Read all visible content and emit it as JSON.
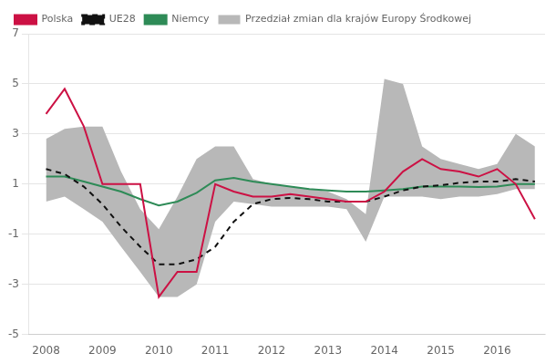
{
  "chart_data": {
    "type": "line",
    "x": [
      2008.0,
      2008.33,
      2008.67,
      2009.0,
      2009.33,
      2009.67,
      2010.0,
      2010.33,
      2010.67,
      2011.0,
      2011.33,
      2011.67,
      2012.0,
      2012.33,
      2012.67,
      2013.0,
      2013.33,
      2013.67,
      2014.0,
      2014.33,
      2014.67,
      2015.0,
      2015.33,
      2015.67,
      2016.0,
      2016.33,
      2016.67
    ],
    "series": [
      {
        "name": "Przedział zmian dla krajów Europy Środkowej",
        "type": "band",
        "color": "#b8b8b8",
        "lower": [
          0.3,
          0.5,
          0.0,
          -0.5,
          -1.5,
          -2.5,
          -3.5,
          -3.5,
          -3.0,
          -0.5,
          0.3,
          0.2,
          0.1,
          0.1,
          0.1,
          0.1,
          0.0,
          -1.3,
          0.5,
          0.5,
          0.5,
          0.4,
          0.5,
          0.5,
          0.6,
          0.8,
          0.8
        ],
        "upper": [
          2.8,
          3.2,
          3.3,
          3.3,
          1.5,
          0.0,
          -0.8,
          0.5,
          2.0,
          2.5,
          2.5,
          1.2,
          1.0,
          0.9,
          0.8,
          0.7,
          0.4,
          -0.2,
          5.2,
          5.0,
          2.5,
          2.0,
          1.8,
          1.6,
          1.8,
          3.0,
          2.5
        ]
      },
      {
        "name": "Niemcy",
        "type": "line",
        "color": "#2e8b57",
        "line_style": "solid",
        "values": [
          1.3,
          1.3,
          1.1,
          0.9,
          0.7,
          0.4,
          0.15,
          0.3,
          0.65,
          1.15,
          1.25,
          1.1,
          1.0,
          0.9,
          0.8,
          0.75,
          0.7,
          0.7,
          0.75,
          0.8,
          0.9,
          0.9,
          0.9,
          0.88,
          0.9,
          1.0,
          1.0
        ]
      },
      {
        "name": "UE28",
        "type": "line",
        "color": "#111111",
        "line_style": "dashed",
        "values": [
          1.6,
          1.4,
          0.9,
          0.2,
          -0.7,
          -1.5,
          -2.2,
          -2.2,
          -2.0,
          -1.5,
          -0.5,
          0.2,
          0.4,
          0.45,
          0.4,
          0.3,
          0.3,
          0.3,
          0.5,
          0.75,
          0.9,
          0.95,
          1.05,
          1.1,
          1.1,
          1.2,
          1.1
        ]
      },
      {
        "name": "Polska",
        "type": "line",
        "color": "#cc1144",
        "line_style": "solid",
        "values": [
          3.8,
          4.8,
          3.3,
          1.0,
          1.0,
          1.0,
          -3.5,
          -2.5,
          -2.5,
          1.0,
          0.7,
          0.5,
          0.5,
          0.6,
          0.5,
          0.4,
          0.3,
          0.3,
          0.7,
          1.5,
          2.0,
          1.6,
          1.5,
          1.3,
          1.6,
          1.0,
          -0.4
        ]
      }
    ],
    "xlim": [
      2007.7,
      2016.85
    ],
    "xticks": [
      2008,
      2009,
      2010,
      2011,
      2012,
      2013,
      2014,
      2015,
      2016
    ],
    "ylim": [
      -5,
      7
    ],
    "yticks": [
      -5,
      -3,
      -1,
      1,
      3,
      5,
      7
    ],
    "grid": "y",
    "legend": "upper left"
  }
}
